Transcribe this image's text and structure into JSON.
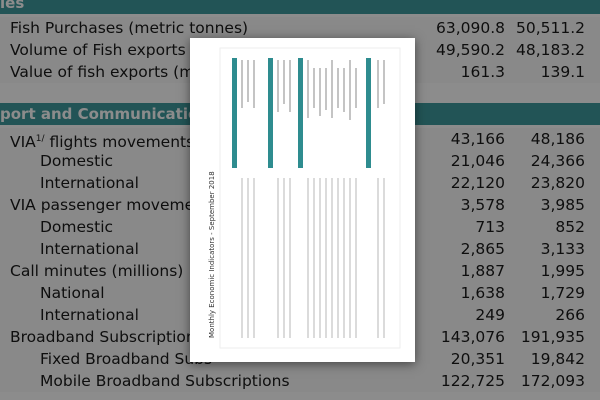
{
  "sections": [
    {
      "title": "ies",
      "rows": [
        {
          "label": "Fish Purchases (metric tonnes)",
          "values": [
            "63,090.8",
            "50,511.2"
          ]
        },
        {
          "label": "Volume of Fish exports (m",
          "values": [
            "49,590.2",
            "48,183.2"
          ]
        },
        {
          "label": "Value of fish exports (milli",
          "values": [
            "161.3",
            "139.1"
          ]
        }
      ]
    },
    {
      "title": "port and Communication",
      "rows": [
        {
          "label": "VIA",
          "sup": "1/",
          "label_rest": "flights movements",
          "values": [
            "43,166",
            "48,186"
          ],
          "children": [
            {
              "label": "Domestic",
              "values": [
                "21,046",
                "24,366"
              ]
            },
            {
              "label": "International",
              "values": [
                "22,120",
                "23,820"
              ]
            }
          ]
        },
        {
          "label": "VIA passenger movements",
          "values": [
            "3,578",
            "3,985"
          ],
          "children": [
            {
              "label": "Domestic",
              "values": [
                "713",
                "852"
              ]
            },
            {
              "label": "International",
              "values": [
                "2,865",
                "3,133"
              ]
            }
          ]
        },
        {
          "label": "Call minutes (millions)",
          "values": [
            "1,887",
            "1,995"
          ],
          "children": [
            {
              "label": "National",
              "values": [
                "1,638",
                "1,729"
              ]
            },
            {
              "label": "International",
              "values": [
                "249",
                "266"
              ]
            }
          ]
        },
        {
          "label": "Broadband Subscriptions",
          "values": [
            "143,076",
            "191,935"
          ],
          "children": [
            {
              "label": "Fixed Broadband Subs",
              "values": [
                "20,351",
                "19,842"
              ]
            },
            {
              "label": "Mobile Broadband Subscriptions",
              "values": [
                "122,725",
                "172,093"
              ]
            }
          ]
        }
      ]
    }
  ],
  "modal": {
    "thumbnail_title": "Monthly Economic Indicators - September 2018"
  }
}
